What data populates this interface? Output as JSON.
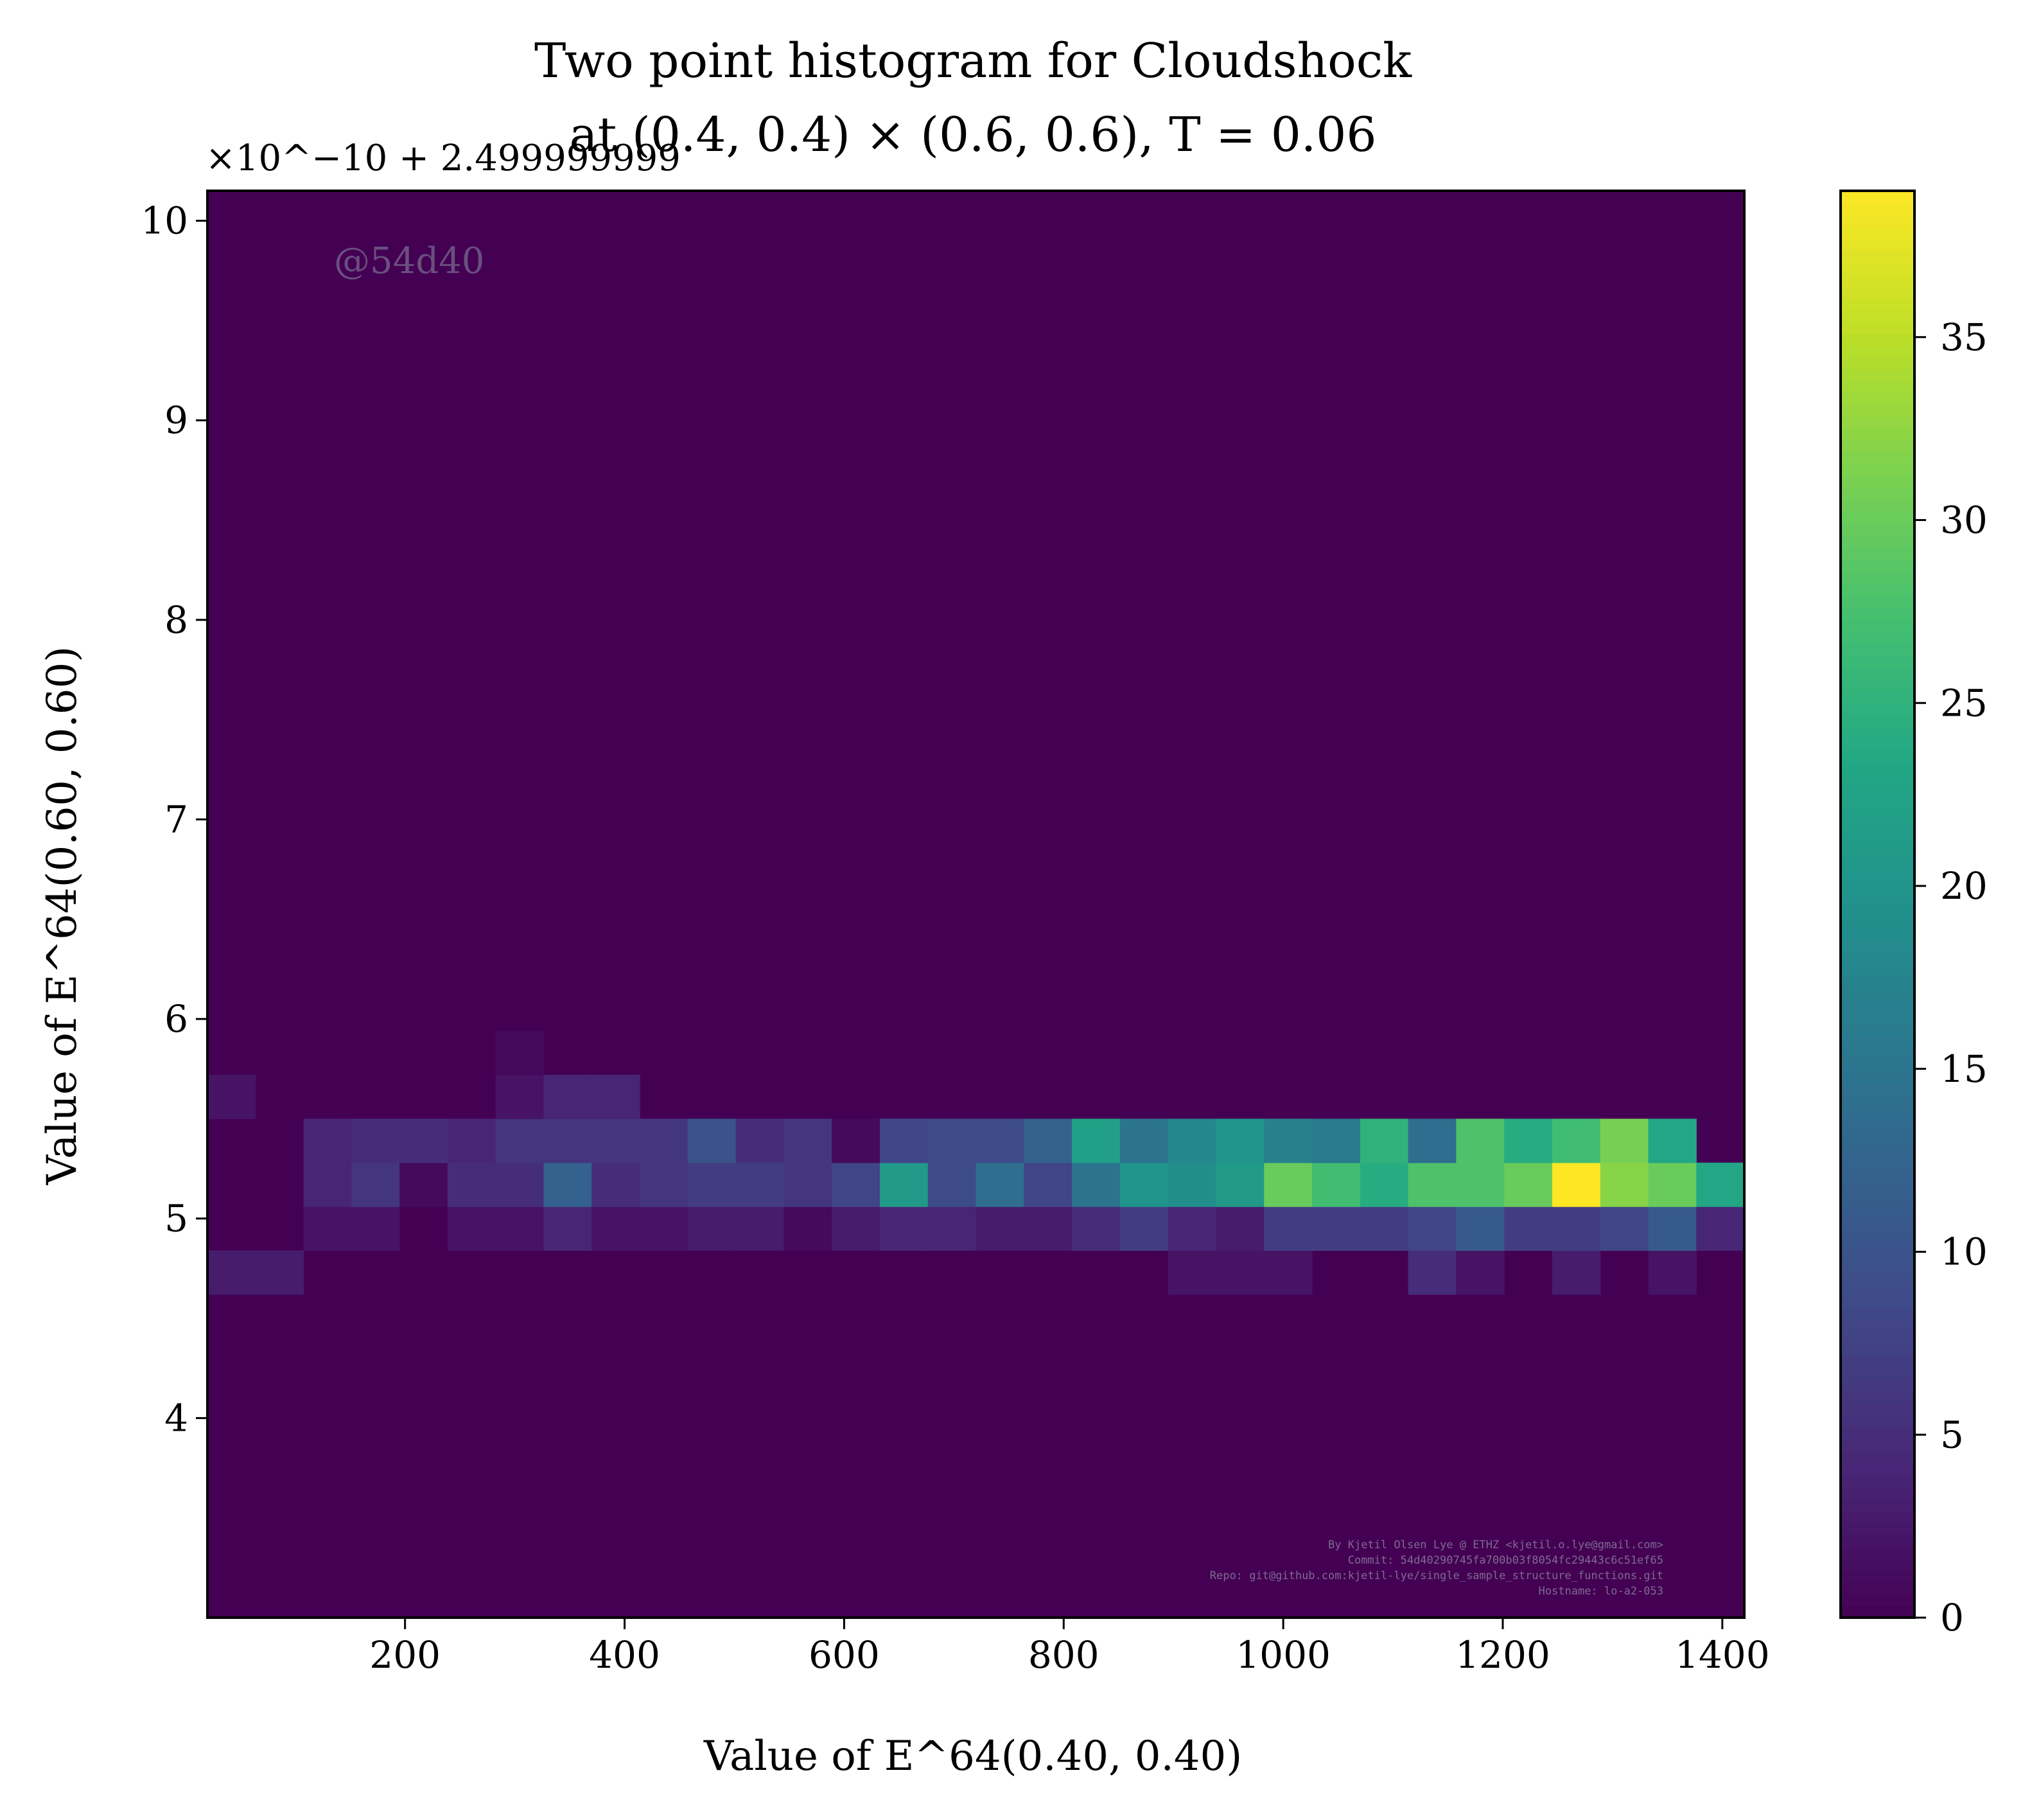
{
  "chart_data": {
    "type": "heatmap",
    "title": "Two point histogram for Cloudshock",
    "subtitle": "at (0.4, 0.4) × (0.6, 0.6), T = 0.06",
    "xlabel": "Value of E^64(0.40, 0.40)",
    "ylabel": "Value of E^64(0.60, 0.60)",
    "y_offset_text": "×10^−10 + 2.499999999",
    "xlim": [
      20,
      1420
    ],
    "ylim": [
      3.0,
      10.15
    ],
    "x_ticks": [
      {
        "value": 200,
        "label": "200"
      },
      {
        "value": 400,
        "label": "400"
      },
      {
        "value": 600,
        "label": "600"
      },
      {
        "value": 800,
        "label": "800"
      },
      {
        "value": 1000,
        "label": "1000"
      },
      {
        "value": 1200,
        "label": "1200"
      },
      {
        "value": 1400,
        "label": "1400"
      }
    ],
    "y_ticks": [
      {
        "value": 4,
        "label": "4"
      },
      {
        "value": 5,
        "label": "5"
      },
      {
        "value": 6,
        "label": "6"
      },
      {
        "value": 7,
        "label": "7"
      },
      {
        "value": 8,
        "label": "8"
      },
      {
        "value": 9,
        "label": "9"
      },
      {
        "value": 10,
        "label": "10"
      }
    ],
    "colorbar": {
      "colormap": "viridis",
      "min": 0,
      "max": 39,
      "ticks": [
        {
          "value": 0,
          "label": "0"
        },
        {
          "value": 5,
          "label": "5"
        },
        {
          "value": 10,
          "label": "10"
        },
        {
          "value": 15,
          "label": "15"
        },
        {
          "value": 20,
          "label": "20"
        },
        {
          "value": 25,
          "label": "25"
        },
        {
          "value": 30,
          "label": "30"
        },
        {
          "value": 35,
          "label": "35"
        }
      ]
    },
    "bins": {
      "x_start": 20,
      "x_width": 43.75,
      "count": 32,
      "y_edges": [
        4.62,
        4.84,
        5.06,
        5.28,
        5.5,
        5.72,
        5.94,
        6.16
      ]
    },
    "counts": [
      [
        3,
        3,
        0,
        0,
        0,
        0,
        0,
        0,
        0,
        0,
        0,
        0,
        0,
        0,
        0,
        0,
        0,
        0,
        0,
        0,
        2,
        2,
        2,
        0,
        0,
        5,
        2,
        0,
        3,
        0,
        2,
        0
      ],
      [
        0,
        0,
        2,
        2,
        0,
        2,
        2,
        4,
        2,
        2,
        3,
        3,
        1,
        3,
        4,
        4,
        3,
        3,
        5,
        7,
        4,
        3,
        7,
        7,
        7,
        8,
        11,
        7,
        7,
        8,
        11,
        4
      ],
      [
        0,
        0,
        4,
        6,
        1,
        5,
        5,
        12,
        5,
        6,
        7,
        7,
        6,
        8,
        21,
        9,
        14,
        8,
        15,
        20,
        19,
        21,
        30,
        27,
        24,
        28,
        28,
        30,
        39,
        32,
        30,
        23
      ],
      [
        0,
        0,
        4,
        5,
        5,
        4,
        6,
        6,
        6,
        6,
        10,
        5,
        6,
        1,
        8,
        9,
        9,
        12,
        22,
        15,
        18,
        20,
        17,
        16,
        25,
        14,
        28,
        24,
        27,
        31,
        23,
        0
      ],
      [
        2,
        0,
        0,
        0,
        0,
        0,
        2,
        4,
        4,
        0,
        0,
        0,
        0,
        0,
        0,
        0,
        0,
        0,
        0,
        0,
        0,
        0,
        0,
        0,
        0,
        0,
        0,
        0,
        0,
        0,
        0,
        0
      ],
      [
        0,
        0,
        0,
        0,
        0,
        0,
        1,
        0,
        0,
        0,
        0,
        0,
        0,
        0,
        0,
        0,
        0,
        0,
        0,
        0,
        0,
        0,
        0,
        0,
        0,
        0,
        0,
        0,
        0,
        0,
        0,
        0
      ],
      [
        0,
        0,
        0,
        0,
        0,
        0,
        0,
        0,
        0,
        0,
        0,
        0,
        0,
        0,
        0,
        0,
        0,
        0,
        0,
        0,
        0,
        0,
        0,
        0,
        0,
        0,
        0,
        0,
        0,
        0,
        0,
        0
      ]
    ]
  },
  "watermark": "@54d40",
  "credits": [
    "By Kjetil Olsen Lye @ ETHZ <kjetil.o.lye@gmail.com>",
    "Commit: 54d40290745fa700b03f8054fc29443c6c51ef65",
    "Repo: git@github.com:kjetil-lye/single_sample_structure_functions.git",
    "Hostname: lo-a2-053"
  ]
}
